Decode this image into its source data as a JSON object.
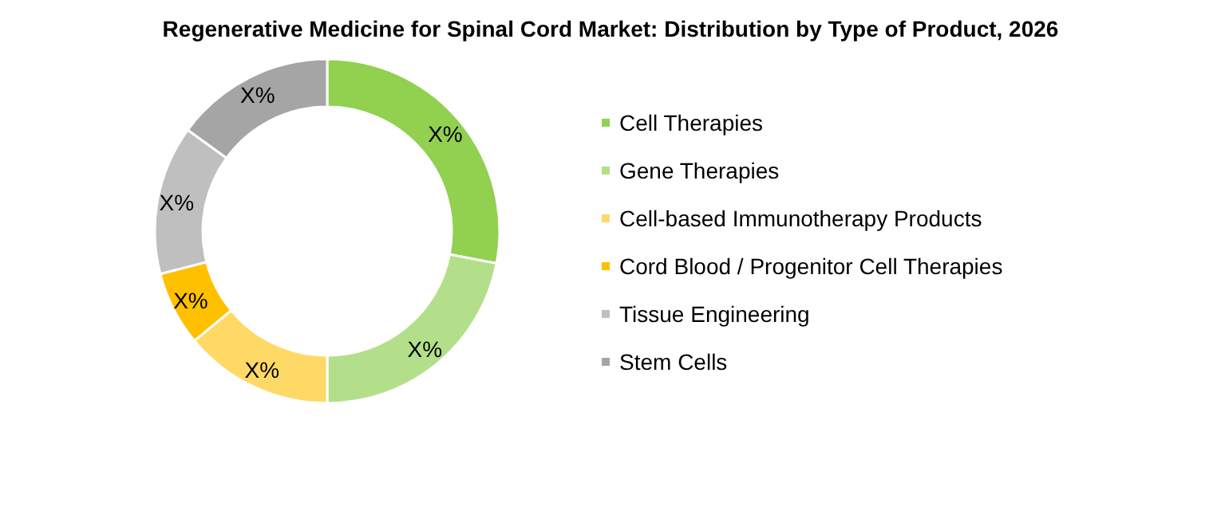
{
  "chart_data": {
    "type": "donut",
    "title": "Regenerative Medicine for Spinal Cord Market: Distribution by Type of Product, 2026",
    "categories": [
      "Cell Therapies",
      "Gene Therapies",
      "Cell-based Immunotherapy Products",
      "Cord Blood / Progenitor Cell Therapies",
      "Tissue Engineering",
      "Stem Cells"
    ],
    "values": [
      28,
      22,
      14,
      7,
      14,
      15
    ],
    "colors": [
      "#92d050",
      "#b3df8a",
      "#ffd966",
      "#ffc000",
      "#bfbfbf",
      "#a5a5a5"
    ],
    "value_labels": [
      "X%",
      "X%",
      "X%",
      "X%",
      "X%",
      "X%"
    ],
    "legend": "right"
  }
}
